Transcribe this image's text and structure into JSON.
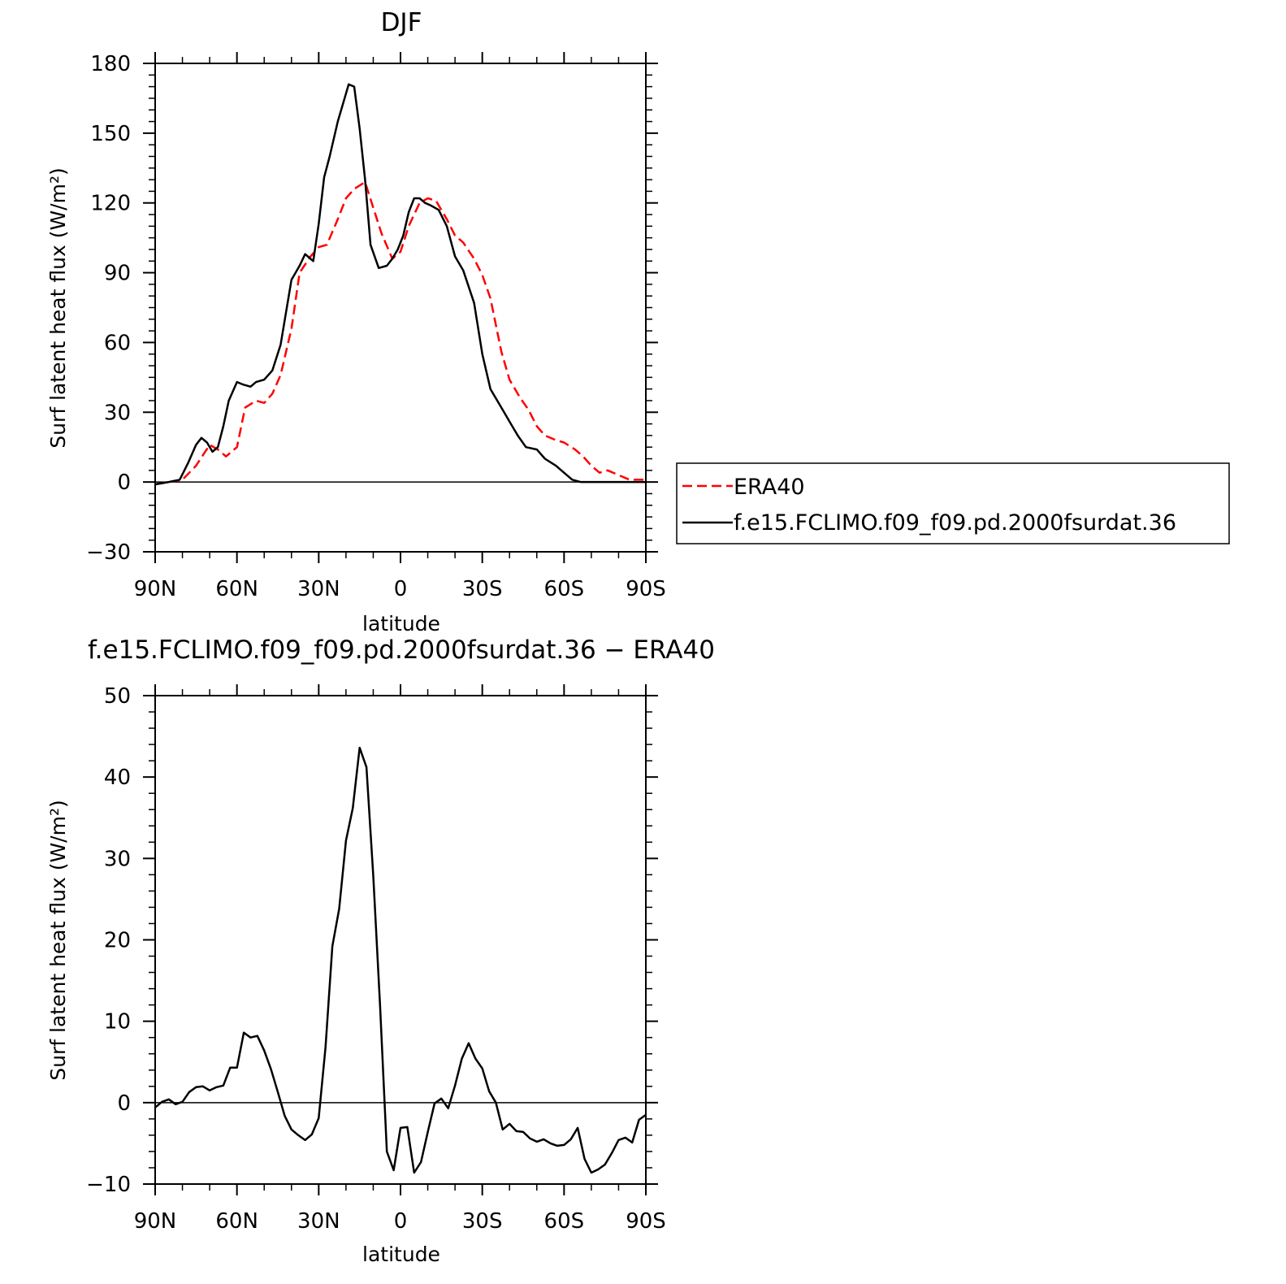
{
  "chart_data": [
    {
      "type": "line",
      "title": "DJF",
      "xlabel": "latitude",
      "ylabel": "Surf latent heat flux (W/m²)",
      "xlim": [
        90,
        -90
      ],
      "ylim": [
        -30,
        180
      ],
      "yticks": [
        -30,
        0,
        30,
        60,
        90,
        120,
        150,
        180
      ],
      "xticks": [
        90,
        60,
        30,
        0,
        -30,
        -60,
        -90
      ],
      "xtick_labels": [
        "90N",
        "60N",
        "30N",
        "0",
        "30S",
        "60S",
        "90S"
      ],
      "legend_placement": "right, outside plot",
      "series": [
        {
          "name": "ERA40",
          "color": "#ff0000",
          "dash": "dashed",
          "x": [
            90,
            85,
            80,
            75,
            70,
            67,
            64,
            60,
            57,
            53,
            50,
            47,
            44,
            40,
            37,
            33,
            30,
            27,
            23,
            20,
            17,
            13,
            10,
            7,
            3,
            0,
            -3,
            -7,
            -10,
            -13,
            -17,
            -20,
            -23,
            -27,
            -30,
            -33,
            -37,
            -40,
            -44,
            -47,
            -50,
            -53,
            -57,
            -60,
            -64,
            -67,
            -70,
            -73,
            -76,
            -80,
            -84,
            -87,
            -90
          ],
          "y": [
            -1,
            0,
            1,
            7,
            16,
            14,
            11,
            15,
            32,
            35,
            34,
            38,
            46,
            66,
            90,
            97,
            101,
            102,
            113,
            122,
            126,
            129,
            118,
            107,
            96,
            99,
            110,
            120,
            122,
            121,
            113,
            106,
            103,
            96,
            89,
            79,
            56,
            44,
            36,
            31,
            24,
            20,
            18,
            17,
            14,
            11,
            7,
            4,
            5,
            3,
            1,
            1,
            1
          ]
        },
        {
          "name": "f.e15.FCLIMO.f09_f09.pd.2000fsurdat.36",
          "color": "#000000",
          "dash": "solid",
          "x": [
            90,
            85,
            81,
            78,
            75,
            73,
            71,
            69,
            67,
            65,
            63,
            60,
            58,
            55,
            53,
            50,
            47,
            44,
            40,
            37,
            35,
            32,
            30,
            28,
            26,
            23,
            21,
            19,
            17,
            15,
            13,
            11,
            8,
            5,
            3,
            1,
            -1,
            -3,
            -5,
            -7,
            -9,
            -11,
            -14,
            -17,
            -20,
            -23,
            -27,
            -30,
            -33,
            -37,
            -40,
            -43,
            -46,
            -50,
            -53,
            -57,
            -60,
            -63,
            -66,
            -70,
            -73,
            -77,
            -80,
            -83,
            -87,
            -90
          ],
          "y": [
            -1,
            0,
            1,
            8,
            16,
            19,
            17,
            13,
            15,
            24,
            35,
            43,
            42,
            41,
            43,
            44,
            48,
            59,
            87,
            93,
            98,
            95,
            111,
            131,
            140,
            155,
            163,
            171,
            170,
            152,
            130,
            102,
            92,
            93,
            96,
            100,
            106,
            116,
            122,
            122,
            120,
            119,
            117,
            110,
            97,
            91,
            77,
            55,
            40,
            32,
            26,
            20,
            15,
            14,
            10,
            7,
            4,
            1,
            0,
            0,
            0,
            0,
            0,
            0,
            0,
            0
          ]
        }
      ]
    },
    {
      "type": "line",
      "title": "f.e15.FCLIMO.f09_f09.pd.2000fsurdat.36 − ERA40",
      "xlabel": "latitude",
      "ylabel": "Surf latent heat flux (W/m²)",
      "xlim": [
        90,
        -90
      ],
      "ylim": [
        -10,
        50
      ],
      "yticks": [
        -10,
        0,
        10,
        20,
        30,
        40,
        50
      ],
      "xticks": [
        90,
        60,
        30,
        0,
        -30,
        -60,
        -90
      ],
      "xtick_labels": [
        "90N",
        "60N",
        "30N",
        "0",
        "30S",
        "60S",
        "90S"
      ],
      "series": [
        {
          "color": "#000000",
          "dash": "solid",
          "x": [
            90,
            87.5,
            85,
            82.5,
            80,
            77.5,
            75,
            72.5,
            70,
            67.5,
            65,
            62.5,
            60,
            57.5,
            55,
            52.5,
            50,
            47.5,
            45,
            42.5,
            40,
            37.5,
            35,
            32.5,
            30,
            27.5,
            25,
            22.5,
            20,
            17.5,
            15,
            12.5,
            10,
            7.5,
            5,
            2.5,
            0,
            -2.5,
            -5,
            -7.5,
            -10,
            -12.5,
            -15,
            -17.5,
            -20,
            -22.5,
            -25,
            -27.5,
            -30,
            -32.5,
            -35,
            -37.5,
            -40,
            -42.5,
            -45,
            -47.5,
            -50,
            -52.5,
            -55,
            -57.5,
            -60,
            -62.5,
            -65,
            -67.5,
            -70,
            -72.5,
            -75,
            -77.5,
            -80,
            -82.5,
            -85,
            -87.5,
            -90
          ],
          "y": [
            -0.6,
            0.1,
            0.4,
            -0.2,
            0.1,
            1.3,
            1.9,
            2.0,
            1.5,
            1.9,
            2.1,
            4.3,
            4.3,
            8.6,
            8.0,
            8.2,
            6.4,
            4.1,
            1.3,
            -1.6,
            -3.3,
            -4.0,
            -4.6,
            -3.9,
            -1.9,
            6.8,
            19.2,
            23.8,
            32.2,
            36.2,
            43.6,
            41.2,
            28.0,
            12.0,
            -6.0,
            -8.3,
            -3.1,
            -3.0,
            -8.6,
            -7.3,
            -3.6,
            -0.1,
            0.5,
            -0.7,
            2.1,
            5.4,
            7.3,
            5.4,
            4.2,
            1.4,
            0.0,
            -3.3,
            -2.6,
            -3.5,
            -3.6,
            -4.4,
            -4.8,
            -4.5,
            -5.0,
            -5.3,
            -5.2,
            -4.5,
            -3.1,
            -6.9,
            -8.6,
            -8.2,
            -7.6,
            -6.2,
            -4.6,
            -4.3,
            -4.9,
            -2.1,
            -1.5
          ]
        }
      ]
    }
  ]
}
